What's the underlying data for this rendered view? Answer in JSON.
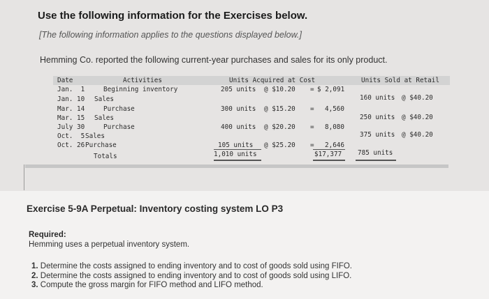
{
  "heading": "Use the following information for the Exercises below.",
  "sub_heading": "[The following information applies to the questions displayed below.]",
  "intro": "Hemming Co. reported the following current-year purchases and sales for its only product.",
  "table": {
    "headers": {
      "date": "Date",
      "activities": "Activities",
      "acquired": "Units Acquired at Cost",
      "sold": "Units Sold at Retail"
    },
    "rows": [
      {
        "date": "Jan.  1",
        "activity": "Beginning inventory",
        "acq_units": "205 units",
        "acq_cost": "@ $10.20",
        "eq": "=",
        "acq_total": "$ 2,091",
        "sold_units": "",
        "sold_price": ""
      },
      {
        "date": "Jan. 10",
        "activity": "Sales",
        "acq_units": "",
        "acq_cost": "",
        "eq": "",
        "acq_total": "",
        "sold_units": "160 units",
        "sold_price": "@ $40.20"
      },
      {
        "date": "Mar. 14",
        "activity": "Purchase",
        "acq_units": "300 units",
        "acq_cost": "@ $15.20",
        "eq": "=",
        "acq_total": "4,560",
        "sold_units": "",
        "sold_price": ""
      },
      {
        "date": "Mar. 15",
        "activity": "Sales",
        "acq_units": "",
        "acq_cost": "",
        "eq": "",
        "acq_total": "",
        "sold_units": "250 units",
        "sold_price": "@ $40.20"
      },
      {
        "date": "July 30",
        "activity": "Purchase",
        "acq_units": "400 units",
        "acq_cost": "@ $20.20",
        "eq": "=",
        "acq_total": "8,080",
        "sold_units": "",
        "sold_price": ""
      },
      {
        "date": "Oct.  5",
        "activity": "Sales",
        "acq_units": "",
        "acq_cost": "",
        "eq": "",
        "acq_total": "",
        "sold_units": "375 units",
        "sold_price": "@ $40.20"
      },
      {
        "date": "Oct. 26",
        "activity": "Purchase",
        "acq_units": "105 units",
        "acq_cost": "@ $25.20",
        "eq": "=",
        "acq_total": "2,646",
        "sold_units": "",
        "sold_price": ""
      }
    ],
    "totals": {
      "label": "Totals",
      "acq_units": "1,010 units",
      "acq_total": "$17,377",
      "sold_units": "785 units"
    }
  },
  "exercise_title": "Exercise 5-9A Perpetual: Inventory costing system LO P3",
  "required_label": "Required:",
  "required_text": "Hemming uses a perpetual inventory system.",
  "questions": [
    {
      "num": "1.",
      "text": "Determine the costs assigned to ending inventory and to cost of goods sold using FIFO."
    },
    {
      "num": "2.",
      "text": "Determine the costs assigned to ending inventory and to cost of goods sold using LIFO."
    },
    {
      "num": "3.",
      "text": "Compute the gross margin for FIFO method and LIFO method."
    }
  ]
}
